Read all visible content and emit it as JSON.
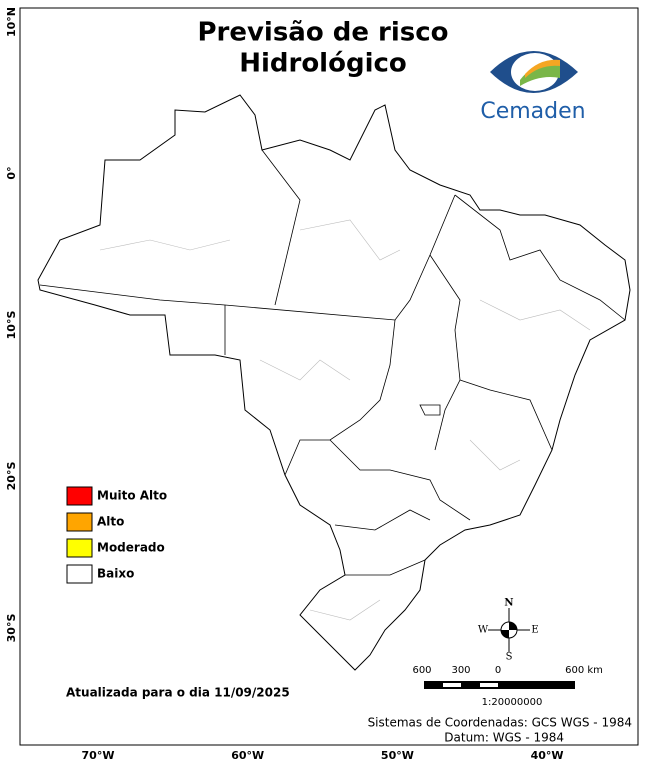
{
  "header": {
    "title_lines": [
      "Previsão de risco",
      "Hidrológico"
    ],
    "logo_text": "Cemaden"
  },
  "map": {
    "lat_labels": [
      "10°N",
      "0°",
      "10°S",
      "20°S",
      "30°S"
    ],
    "lon_labels": [
      "70°W",
      "60°W",
      "50°W",
      "40°W"
    ]
  },
  "legend": {
    "items": [
      {
        "label": "Muito Alto",
        "color": "#ff0000"
      },
      {
        "label": "Alto",
        "color": "#ffa500"
      },
      {
        "label": "Moderado",
        "color": "#ffff00"
      },
      {
        "label": "Baixo",
        "color": "#ffffff"
      }
    ]
  },
  "update_note": "Atualizada para o dia 11/09/2025",
  "scale_bar": {
    "labels": [
      "600",
      "300",
      "0",
      "600 km"
    ],
    "ratio": "1:20000000"
  },
  "compass": {
    "n": "N",
    "e": "E",
    "s": "S",
    "w": "W"
  },
  "footer": {
    "coordinate_system": "Sistemas de Coordenadas: GCS WGS - 1984",
    "datum": "Datum: WGS - 1984"
  }
}
